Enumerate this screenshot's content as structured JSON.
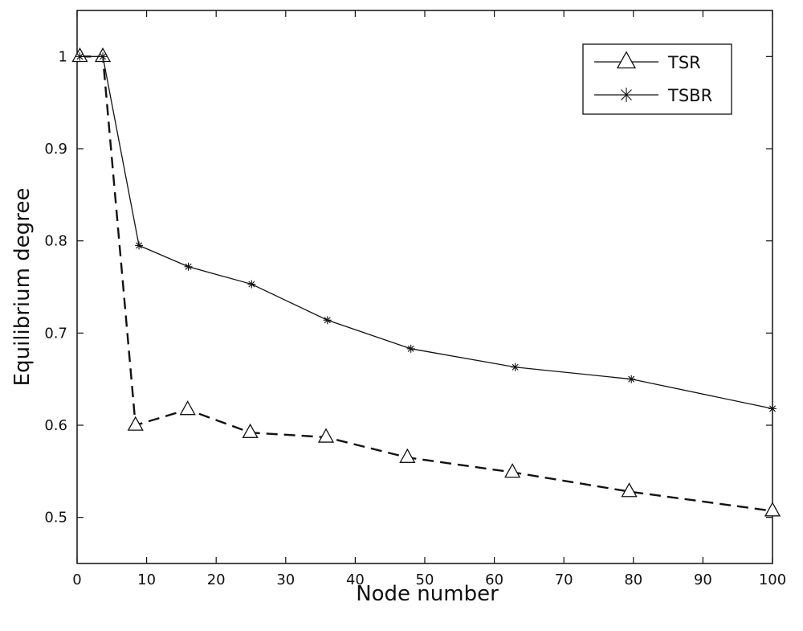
{
  "chart_data": {
    "type": "line",
    "xlabel": "Node number",
    "ylabel": "Equilibrium degree",
    "xlim": [
      0,
      100
    ],
    "ylim": [
      0.45,
      1.05
    ],
    "xticks": [
      0,
      10,
      20,
      30,
      40,
      50,
      60,
      70,
      80,
      90,
      100
    ],
    "yticks": [
      0.5,
      0.6,
      0.7,
      0.8,
      0.9,
      1
    ],
    "grid": false,
    "legend_position": "top-right",
    "series": [
      {
        "name": "TSR",
        "marker": "triangle",
        "line_style": "dashed",
        "color": "#111111",
        "x": [
          0.4,
          3.7,
          8.4,
          15.9,
          24.9,
          35.8,
          47.5,
          62.6,
          79.4,
          100
        ],
        "y": [
          1.0,
          1.0,
          0.6,
          0.617,
          0.592,
          0.587,
          0.565,
          0.549,
          0.528,
          0.507
        ]
      },
      {
        "name": "TSBR",
        "marker": "asterisk",
        "line_style": "solid",
        "color": "#111111",
        "x": [
          0.4,
          3.7,
          8.9,
          16.0,
          25.1,
          36.0,
          48.0,
          63.0,
          79.7,
          100
        ],
        "y": [
          1.0,
          1.0,
          0.795,
          0.772,
          0.753,
          0.714,
          0.683,
          0.663,
          0.65,
          0.618
        ]
      }
    ]
  }
}
